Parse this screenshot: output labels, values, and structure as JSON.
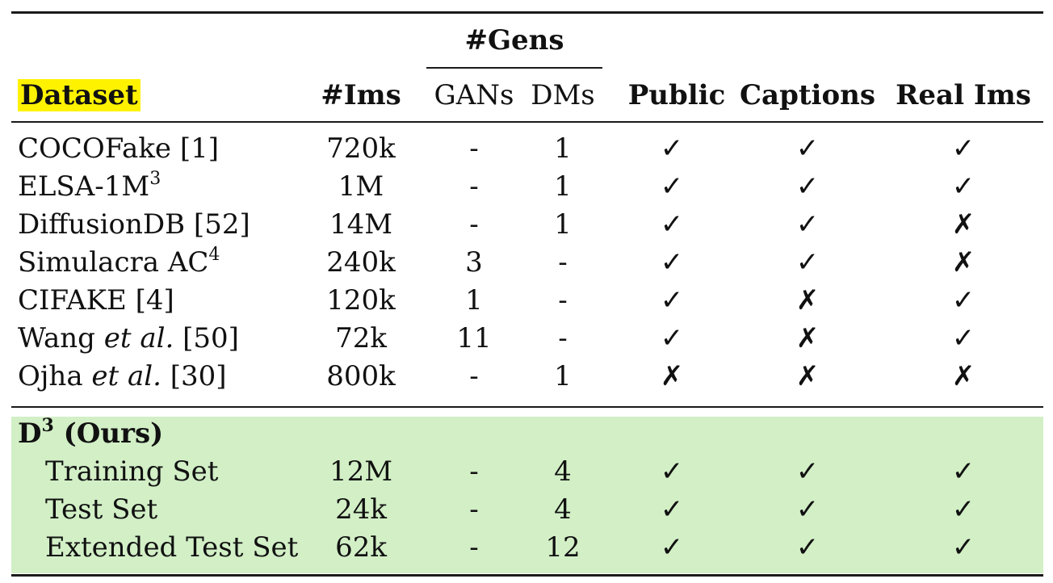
{
  "header": {
    "gens_group": "#Gens",
    "dataset": "Dataset",
    "ims": "#Ims",
    "gans": "GANs",
    "dms": "DMs",
    "public": "Public",
    "captions": "Captions",
    "real_ims": "Real Ims"
  },
  "rows": [
    {
      "name": "COCOFake [1]",
      "ims": "720k",
      "gans": "-",
      "dms": "1",
      "public": "✓",
      "captions": "✓",
      "real": "✓"
    },
    {
      "name_pre": "ELSA-1M",
      "name_sup": "3",
      "ims": "1M",
      "gans": "-",
      "dms": "1",
      "public": "✓",
      "captions": "✓",
      "real": "✓"
    },
    {
      "name": "DiffusionDB [52]",
      "ims": "14M",
      "gans": "-",
      "dms": "1",
      "public": "✓",
      "captions": "✓",
      "real": "✗"
    },
    {
      "name_pre": "Simulacra AC",
      "name_sup": "4",
      "ims": "240k",
      "gans": "3",
      "dms": "-",
      "public": "✓",
      "captions": "✓",
      "real": "✗"
    },
    {
      "name": "CIFAKE [4]",
      "ims": "120k",
      "gans": "1",
      "dms": "-",
      "public": "✓",
      "captions": "✗",
      "real": "✓"
    },
    {
      "name_pre": "Wang ",
      "name_em": "et al.",
      "name_post": " [50]",
      "ims": "72k",
      "gans": "11",
      "dms": "-",
      "public": "✓",
      "captions": "✗",
      "real": "✓"
    },
    {
      "name_pre": "Ojha ",
      "name_em": "et al.",
      "name_post": " [30]",
      "ims": "800k",
      "gans": "-",
      "dms": "1",
      "public": "✗",
      "captions": "✗",
      "real": "✗"
    }
  ],
  "ours": {
    "title_pre": "D",
    "title_sup": "3",
    "title_post": " (Ours)",
    "rows": [
      {
        "name": "Training Set",
        "ims": "12M",
        "gans": "-",
        "dms": "4",
        "public": "✓",
        "captions": "✓",
        "real": "✓"
      },
      {
        "name": "Test Set",
        "ims": "24k",
        "gans": "-",
        "dms": "4",
        "public": "✓",
        "captions": "✓",
        "real": "✓"
      },
      {
        "name": "Extended Test Set",
        "ims": "62k",
        "gans": "-",
        "dms": "12",
        "public": "✓",
        "captions": "✓",
        "real": "✓"
      }
    ]
  },
  "colors": {
    "highlight": "#fff200",
    "ours_background": "#d2efc6"
  }
}
